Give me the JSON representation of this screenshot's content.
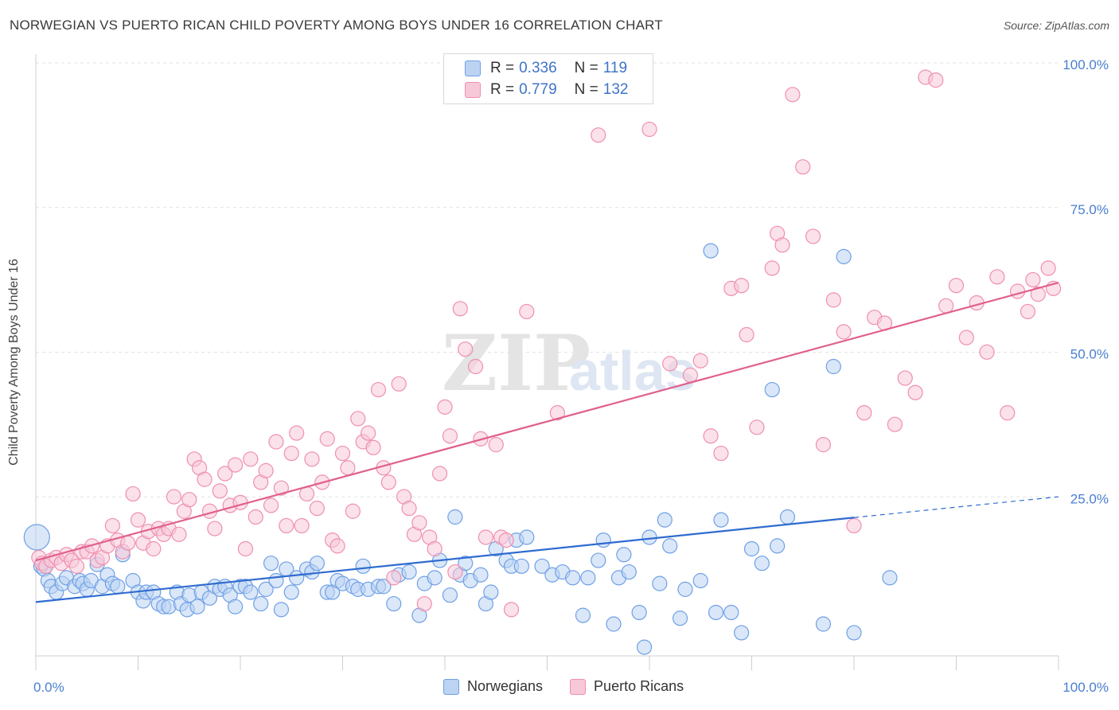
{
  "title": "NORWEGIAN VS PUERTO RICAN CHILD POVERTY AMONG BOYS UNDER 16 CORRELATION CHART",
  "source": "Source: ZipAtlas.com",
  "watermark": {
    "zip": "ZIP",
    "atlas": "atlas"
  },
  "legend_top": {
    "rows": [
      {
        "r_label": "R =",
        "r_value": "0.336",
        "n_label": "N =",
        "n_value": "119"
      },
      {
        "r_label": "R =",
        "r_value": "0.779",
        "n_label": "N =",
        "n_value": "132"
      }
    ]
  },
  "legend_bottom": {
    "items": [
      "Norwegians",
      "Puerto Ricans"
    ]
  },
  "chart_data": {
    "type": "scatter",
    "title": "NORWEGIAN VS PUERTO RICAN CHILD POVERTY AMONG BOYS UNDER 16 CORRELATION CHART",
    "xlabel": "",
    "ylabel": "Child Poverty Among Boys Under 16",
    "xlim": [
      0,
      100
    ],
    "ylim": [
      0,
      105
    ],
    "x_tick_labels": [
      "0.0%",
      "100.0%"
    ],
    "y_tick_labels": [
      {
        "value": 25,
        "label": "25.0%"
      },
      {
        "value": 50,
        "label": "50.0%"
      },
      {
        "value": 75,
        "label": "75.0%"
      },
      {
        "value": 100,
        "label": "100.0%"
      }
    ],
    "grid": true,
    "legend_position": "bottom",
    "series": [
      {
        "name": "Norwegians",
        "color": "#6fa0e6",
        "fill": "#bcd3f2",
        "trend": {
          "x": [
            0,
            80
          ],
          "y": [
            9.3,
            23.9
          ],
          "dashed_to": [
            100,
            27.5
          ],
          "color": "#2f6bd0"
        },
        "points": [
          [
            0.1,
            20.5
          ],
          [
            0.5,
            15.5
          ],
          [
            0.8,
            15.0
          ],
          [
            1.2,
            13.0
          ],
          [
            1.5,
            12.0
          ],
          [
            2.0,
            11.0
          ],
          [
            2.6,
            12.5
          ],
          [
            3.0,
            13.5
          ],
          [
            3.8,
            12.0
          ],
          [
            4.3,
            13.0
          ],
          [
            4.6,
            12.5
          ],
          [
            5.0,
            11.5
          ],
          [
            5.4,
            13.0
          ],
          [
            6.0,
            15.8
          ],
          [
            6.5,
            12.0
          ],
          [
            7.0,
            14.0
          ],
          [
            7.5,
            12.5
          ],
          [
            8.0,
            12.0
          ],
          [
            8.5,
            17.5
          ],
          [
            9.5,
            13.0
          ],
          [
            10.0,
            11.0
          ],
          [
            10.5,
            9.5
          ],
          [
            10.8,
            11.0
          ],
          [
            11.5,
            11.0
          ],
          [
            12.0,
            9.0
          ],
          [
            12.5,
            8.5
          ],
          [
            13.0,
            8.5
          ],
          [
            13.8,
            11.0
          ],
          [
            14.2,
            9.0
          ],
          [
            14.8,
            8.0
          ],
          [
            15.0,
            10.5
          ],
          [
            15.8,
            8.5
          ],
          [
            16.2,
            11.0
          ],
          [
            17.0,
            10.0
          ],
          [
            17.5,
            12.0
          ],
          [
            18.0,
            11.5
          ],
          [
            18.5,
            12.0
          ],
          [
            19.0,
            10.5
          ],
          [
            19.5,
            8.5
          ],
          [
            20.0,
            12.0
          ],
          [
            20.5,
            12.0
          ],
          [
            21.0,
            11.0
          ],
          [
            22.0,
            9.0
          ],
          [
            22.5,
            11.5
          ],
          [
            23.0,
            16.0
          ],
          [
            23.5,
            13.0
          ],
          [
            24.0,
            8.0
          ],
          [
            24.5,
            15.0
          ],
          [
            25.0,
            11.0
          ],
          [
            25.5,
            13.5
          ],
          [
            26.5,
            15.0
          ],
          [
            27.0,
            14.5
          ],
          [
            27.5,
            16.0
          ],
          [
            28.5,
            11.0
          ],
          [
            29.0,
            11.0
          ],
          [
            29.5,
            13.0
          ],
          [
            30.0,
            12.5
          ],
          [
            31.0,
            12.0
          ],
          [
            31.5,
            11.5
          ],
          [
            32.0,
            15.5
          ],
          [
            32.5,
            11.5
          ],
          [
            33.5,
            12.0
          ],
          [
            34.0,
            12.0
          ],
          [
            35.0,
            9.0
          ],
          [
            35.5,
            14.0
          ],
          [
            36.5,
            14.5
          ],
          [
            37.5,
            7.0
          ],
          [
            38.0,
            12.5
          ],
          [
            39.0,
            13.5
          ],
          [
            39.5,
            16.5
          ],
          [
            40.5,
            10.5
          ],
          [
            41.0,
            24.0
          ],
          [
            41.5,
            14.0
          ],
          [
            42.0,
            16.0
          ],
          [
            42.5,
            13.0
          ],
          [
            43.5,
            14.0
          ],
          [
            44.0,
            9.0
          ],
          [
            44.5,
            11.0
          ],
          [
            45.0,
            18.5
          ],
          [
            46.0,
            16.5
          ],
          [
            46.5,
            15.5
          ],
          [
            47.0,
            20.0
          ],
          [
            47.5,
            15.5
          ],
          [
            48.0,
            20.5
          ],
          [
            49.5,
            15.5
          ],
          [
            50.5,
            14.0
          ],
          [
            51.5,
            14.5
          ],
          [
            52.5,
            13.5
          ],
          [
            53.5,
            7.0
          ],
          [
            54.0,
            13.5
          ],
          [
            55.0,
            16.5
          ],
          [
            55.5,
            20.0
          ],
          [
            56.5,
            5.5
          ],
          [
            57.0,
            13.5
          ],
          [
            57.5,
            17.5
          ],
          [
            58.0,
            14.5
          ],
          [
            59.0,
            7.5
          ],
          [
            59.5,
            1.5
          ],
          [
            60.0,
            20.5
          ],
          [
            61.0,
            12.5
          ],
          [
            61.5,
            23.5
          ],
          [
            62.0,
            19.0
          ],
          [
            63.0,
            6.5
          ],
          [
            63.5,
            11.5
          ],
          [
            65.0,
            13.0
          ],
          [
            66.0,
            70.0
          ],
          [
            66.5,
            7.5
          ],
          [
            67.0,
            23.5
          ],
          [
            68.0,
            7.5
          ],
          [
            69.0,
            4.0
          ],
          [
            70.0,
            18.5
          ],
          [
            71.0,
            16.0
          ],
          [
            72.0,
            46.0
          ],
          [
            72.5,
            19.0
          ],
          [
            73.5,
            24.0
          ],
          [
            77.0,
            5.5
          ],
          [
            78.0,
            50.0
          ],
          [
            79.0,
            69.0
          ],
          [
            80.0,
            4.0
          ],
          [
            83.5,
            13.5
          ]
        ]
      },
      {
        "name": "Puerto Ricans",
        "color": "#ef8fb0",
        "fill": "#f7c8d8",
        "trend": {
          "x": [
            0,
            100
          ],
          "y": [
            16.5,
            64.5
          ],
          "color": "#e0608e"
        },
        "points": [
          [
            0.3,
            17.0
          ],
          [
            0.6,
            16.0
          ],
          [
            1.0,
            15.5
          ],
          [
            1.5,
            16.5
          ],
          [
            2.0,
            17.0
          ],
          [
            2.5,
            16.0
          ],
          [
            3.0,
            17.5
          ],
          [
            3.5,
            16.5
          ],
          [
            4.0,
            15.5
          ],
          [
            4.5,
            18.0
          ],
          [
            5.0,
            18.0
          ],
          [
            5.5,
            19.0
          ],
          [
            6.0,
            16.5
          ],
          [
            6.5,
            17.0
          ],
          [
            7.0,
            19.0
          ],
          [
            7.5,
            22.5
          ],
          [
            8.0,
            20.0
          ],
          [
            8.5,
            18.0
          ],
          [
            9.0,
            19.5
          ],
          [
            9.5,
            28.0
          ],
          [
            10.0,
            23.5
          ],
          [
            10.5,
            19.5
          ],
          [
            11.0,
            21.5
          ],
          [
            11.5,
            18.5
          ],
          [
            12.0,
            22.0
          ],
          [
            12.5,
            21.0
          ],
          [
            13.0,
            22.0
          ],
          [
            13.5,
            27.5
          ],
          [
            14.0,
            21.0
          ],
          [
            14.5,
            25.0
          ],
          [
            15.0,
            27.0
          ],
          [
            15.5,
            34.0
          ],
          [
            16.0,
            32.5
          ],
          [
            16.5,
            30.5
          ],
          [
            17.0,
            25.0
          ],
          [
            17.5,
            22.0
          ],
          [
            18.0,
            28.5
          ],
          [
            18.5,
            31.5
          ],
          [
            19.0,
            26.0
          ],
          [
            19.5,
            33.0
          ],
          [
            20.0,
            26.5
          ],
          [
            20.5,
            18.5
          ],
          [
            21.0,
            34.0
          ],
          [
            21.5,
            24.0
          ],
          [
            22.0,
            30.0
          ],
          [
            22.5,
            32.0
          ],
          [
            23.0,
            26.0
          ],
          [
            23.5,
            37.0
          ],
          [
            24.0,
            29.0
          ],
          [
            24.5,
            22.5
          ],
          [
            25.0,
            35.0
          ],
          [
            25.5,
            38.5
          ],
          [
            26.0,
            22.5
          ],
          [
            26.5,
            28.0
          ],
          [
            27.0,
            34.0
          ],
          [
            27.5,
            25.5
          ],
          [
            28.0,
            30.0
          ],
          [
            28.5,
            37.5
          ],
          [
            29.0,
            20.0
          ],
          [
            29.5,
            19.0
          ],
          [
            30.0,
            35.0
          ],
          [
            30.5,
            32.5
          ],
          [
            31.0,
            25.0
          ],
          [
            31.5,
            41.0
          ],
          [
            32.0,
            37.0
          ],
          [
            32.5,
            38.5
          ],
          [
            33.0,
            36.0
          ],
          [
            33.5,
            46.0
          ],
          [
            34.0,
            32.5
          ],
          [
            34.5,
            30.0
          ],
          [
            35.0,
            13.5
          ],
          [
            35.5,
            47.0
          ],
          [
            36.0,
            27.5
          ],
          [
            36.5,
            25.5
          ],
          [
            37.0,
            21.0
          ],
          [
            37.5,
            23.0
          ],
          [
            38.0,
            9.0
          ],
          [
            38.5,
            20.5
          ],
          [
            39.0,
            18.5
          ],
          [
            39.5,
            31.5
          ],
          [
            40.0,
            43.0
          ],
          [
            40.5,
            38.0
          ],
          [
            41.0,
            14.5
          ],
          [
            41.5,
            60.0
          ],
          [
            42.0,
            53.0
          ],
          [
            43.0,
            50.0
          ],
          [
            43.5,
            37.5
          ],
          [
            44.0,
            20.5
          ],
          [
            45.0,
            36.5
          ],
          [
            45.5,
            20.5
          ],
          [
            46.0,
            20.0
          ],
          [
            46.5,
            8.0
          ],
          [
            48.0,
            59.5
          ],
          [
            51.0,
            42.0
          ],
          [
            55.0,
            90.0
          ],
          [
            60.0,
            91.0
          ],
          [
            62.0,
            50.5
          ],
          [
            64.0,
            48.5
          ],
          [
            65.0,
            51.0
          ],
          [
            66.0,
            38.0
          ],
          [
            67.0,
            35.0
          ],
          [
            68.0,
            63.5
          ],
          [
            69.0,
            64.0
          ],
          [
            69.5,
            55.5
          ],
          [
            70.5,
            39.5
          ],
          [
            72.0,
            67.0
          ],
          [
            72.5,
            73.0
          ],
          [
            73.0,
            71.0
          ],
          [
            74.0,
            97.0
          ],
          [
            75.0,
            84.5
          ],
          [
            76.0,
            72.5
          ],
          [
            77.0,
            36.5
          ],
          [
            78.0,
            61.5
          ],
          [
            79.0,
            56.0
          ],
          [
            80.0,
            22.5
          ],
          [
            81.0,
            42.0
          ],
          [
            82.0,
            58.5
          ],
          [
            83.0,
            57.5
          ],
          [
            84.0,
            40.0
          ],
          [
            85.0,
            48.0
          ],
          [
            86.0,
            45.5
          ],
          [
            87.0,
            100.0
          ],
          [
            88.0,
            99.5
          ],
          [
            89.0,
            60.5
          ],
          [
            90.0,
            64.0
          ],
          [
            91.0,
            55.0
          ],
          [
            92.0,
            61.0
          ],
          [
            93.0,
            52.5
          ],
          [
            94.0,
            65.5
          ],
          [
            95.0,
            42.0
          ],
          [
            96.0,
            63.0
          ],
          [
            97.0,
            59.5
          ],
          [
            97.5,
            65.0
          ],
          [
            98.0,
            62.5
          ],
          [
            99.0,
            67.0
          ],
          [
            99.5,
            63.5
          ]
        ]
      }
    ]
  }
}
